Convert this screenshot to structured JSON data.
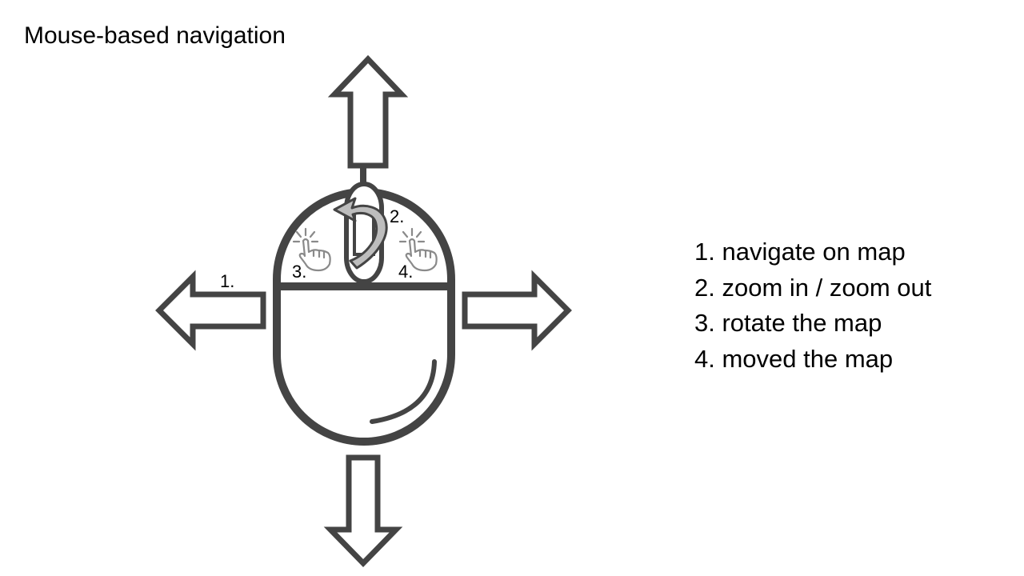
{
  "title": "Mouse-based navigation",
  "colors": {
    "outline": "#444444",
    "pointer_ribbon": "#bdbdbd",
    "hand_outline": "#8a8a8a",
    "text": "#000000"
  },
  "icons": {
    "mouse": "computer-mouse-icon",
    "arrows": [
      "arrow-up-icon",
      "arrow-down-icon",
      "arrow-left-icon",
      "arrow-right-icon"
    ],
    "scroll": "scroll-rotate-arrow-icon",
    "clicks": [
      "click-hand-left-icon",
      "click-hand-right-icon"
    ]
  },
  "callouts": {
    "navigate": "1.",
    "zoom": "2.",
    "rotate": "3.",
    "move": "4."
  },
  "legend": [
    "1. navigate on map",
    "2. zoom in / zoom out",
    "3. rotate the map",
    "4. moved the map"
  ]
}
